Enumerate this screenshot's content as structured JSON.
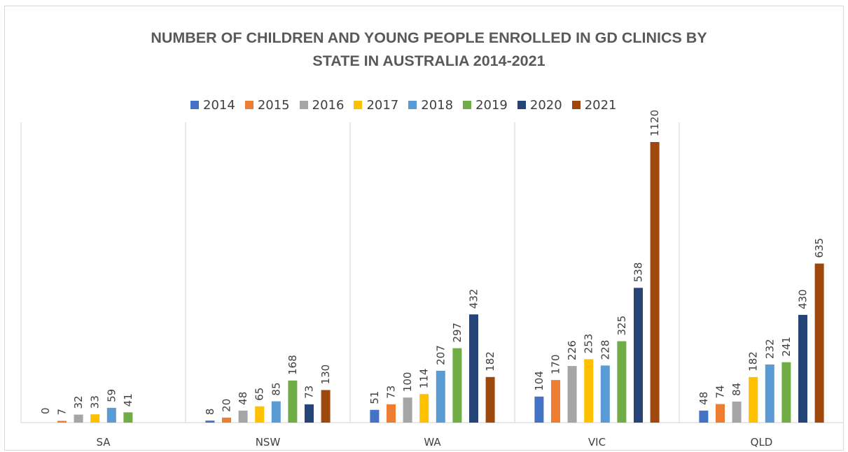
{
  "chart_data": {
    "type": "bar",
    "title_lines": [
      "NUMBER OF CHILDREN AND YOUNG PEOPLE ENROLLED IN GD CLINICS BY",
      "STATE IN AUSTRALIA 2014-2021"
    ],
    "categories": [
      "SA",
      "NSW",
      "WA",
      "VIC",
      "QLD"
    ],
    "series": [
      {
        "name": "2014",
        "color": "#4472c4",
        "values": [
          null,
          8,
          51,
          104,
          48
        ]
      },
      {
        "name": "2015",
        "color": "#ed7d31",
        "values": [
          7,
          20,
          73,
          170,
          74
        ]
      },
      {
        "name": "2016",
        "color": "#a5a5a5",
        "values": [
          32,
          48,
          100,
          226,
          84
        ]
      },
      {
        "name": "2017",
        "color": "#ffc000",
        "values": [
          33,
          65,
          114,
          253,
          182
        ]
      },
      {
        "name": "2018",
        "color": "#5b9bd5",
        "values": [
          59,
          85,
          207,
          228,
          232
        ]
      },
      {
        "name": "2019",
        "color": "#70ad47",
        "values": [
          41,
          168,
          297,
          325,
          241
        ]
      },
      {
        "name": "2020",
        "color": "#264478",
        "values": [
          null,
          73,
          432,
          538,
          430
        ]
      },
      {
        "name": "2021",
        "color": "#9e480e",
        "values": [
          null,
          130,
          182,
          1120,
          635
        ]
      }
    ],
    "extra_labels": [
      {
        "category": "SA",
        "series": "2014",
        "text": "0"
      }
    ],
    "value_label_text": {
      "VIC-2021": "1120"
    },
    "ylim": [
      0,
      1120
    ],
    "grid": false,
    "legend": "top"
  }
}
